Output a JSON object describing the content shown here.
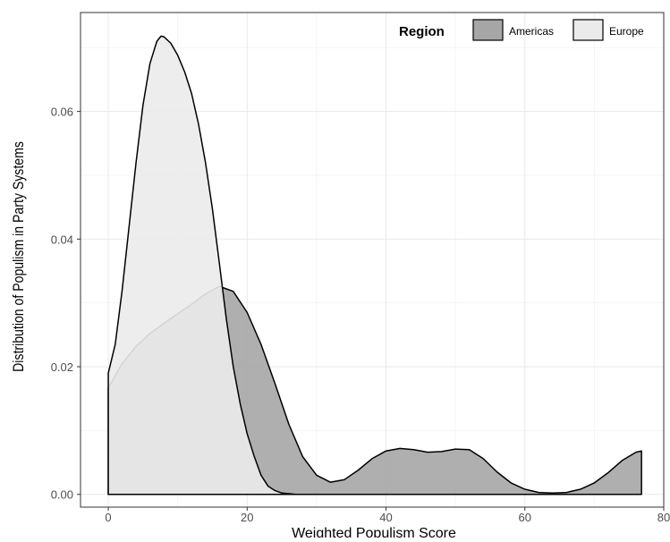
{
  "chart_data": {
    "type": "area",
    "subtype": "density",
    "xlabel": "Weighted Populism Score",
    "ylabel": "Distribution of Populism in Party Systems",
    "xlim": [
      -4,
      80
    ],
    "ylim": [
      -0.002,
      0.0755
    ],
    "x_ticks": [
      0,
      20,
      40,
      60,
      80
    ],
    "x_tick_labels": [
      "0",
      "20",
      "40",
      "60",
      "80"
    ],
    "y_ticks": [
      0.0,
      0.02,
      0.04,
      0.06
    ],
    "y_tick_labels": [
      "0.00",
      "0.02",
      "0.04",
      "0.06"
    ],
    "grid": true,
    "legend": {
      "title": "Region",
      "position": "top-right",
      "orientation": "horizontal"
    },
    "series": [
      {
        "name": "Americas",
        "color": "#a6a6a6",
        "points": [
          [
            0,
            0.0167
          ],
          [
            2,
            0.0205
          ],
          [
            4,
            0.0232
          ],
          [
            6,
            0.0252
          ],
          [
            8,
            0.0268
          ],
          [
            10,
            0.0283
          ],
          [
            12,
            0.0298
          ],
          [
            14,
            0.0314
          ],
          [
            16,
            0.0326
          ],
          [
            18,
            0.0318
          ],
          [
            20,
            0.0285
          ],
          [
            22,
            0.0235
          ],
          [
            24,
            0.0174
          ],
          [
            26,
            0.011
          ],
          [
            28,
            0.0059
          ],
          [
            30,
            0.003
          ],
          [
            32,
            0.0019
          ],
          [
            34,
            0.0023
          ],
          [
            36,
            0.0038
          ],
          [
            38,
            0.0056
          ],
          [
            40,
            0.0068
          ],
          [
            42,
            0.0072
          ],
          [
            44,
            0.007
          ],
          [
            46,
            0.0066
          ],
          [
            48,
            0.0067
          ],
          [
            50,
            0.0071
          ],
          [
            52,
            0.007
          ],
          [
            54,
            0.0056
          ],
          [
            56,
            0.0035
          ],
          [
            58,
            0.0018
          ],
          [
            60,
            0.0008
          ],
          [
            62,
            0.0003
          ],
          [
            64,
            0.0002
          ],
          [
            66,
            0.0003
          ],
          [
            68,
            0.0008
          ],
          [
            70,
            0.0018
          ],
          [
            72,
            0.0034
          ],
          [
            74,
            0.0053
          ],
          [
            76,
            0.0066
          ],
          [
            76.8,
            0.0068
          ]
        ]
      },
      {
        "name": "Europe",
        "color": "#ebebeb",
        "points": [
          [
            0,
            0.019
          ],
          [
            1,
            0.0235
          ],
          [
            2,
            0.032
          ],
          [
            3,
            0.042
          ],
          [
            4,
            0.052
          ],
          [
            5,
            0.061
          ],
          [
            6,
            0.0675
          ],
          [
            7,
            0.071
          ],
          [
            7.6,
            0.0718
          ],
          [
            8,
            0.0717
          ],
          [
            9,
            0.0707
          ],
          [
            10,
            0.0688
          ],
          [
            11,
            0.0662
          ],
          [
            12,
            0.0628
          ],
          [
            13,
            0.058
          ],
          [
            14,
            0.052
          ],
          [
            15,
            0.0447
          ],
          [
            16,
            0.0362
          ],
          [
            17,
            0.0275
          ],
          [
            18,
            0.02
          ],
          [
            19,
            0.0142
          ],
          [
            20,
            0.0095
          ],
          [
            21,
            0.006
          ],
          [
            22,
            0.003
          ],
          [
            23,
            0.0013
          ],
          [
            24,
            0.0006
          ],
          [
            25,
            0.0002
          ],
          [
            26,
            0.0001
          ],
          [
            27,
            0.0
          ]
        ]
      }
    ]
  }
}
